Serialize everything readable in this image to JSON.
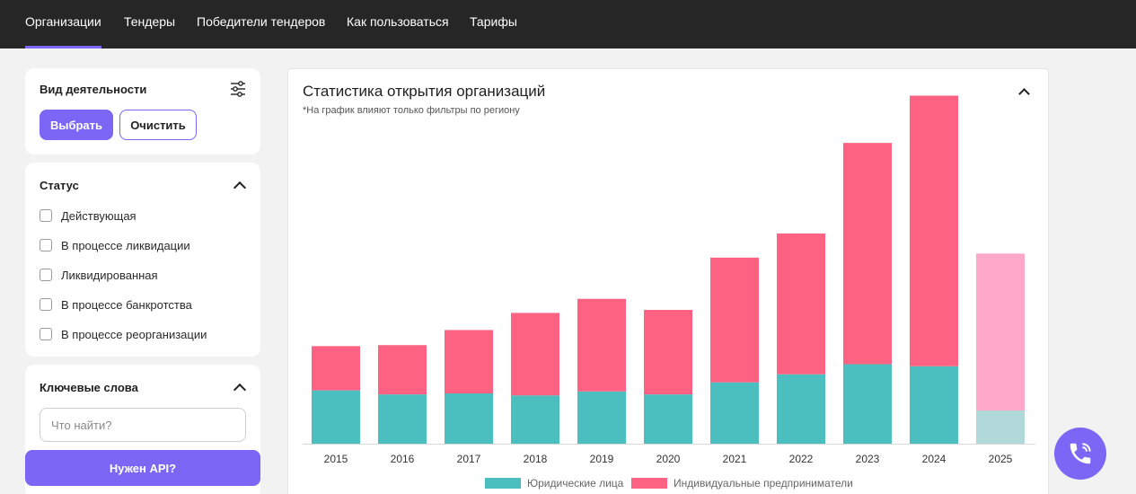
{
  "nav": {
    "items": [
      {
        "label": "Организации",
        "active": true
      },
      {
        "label": "Тендеры",
        "active": false
      },
      {
        "label": "Победители тендеров",
        "active": false
      },
      {
        "label": "Как пользоваться",
        "active": false
      },
      {
        "label": "Тарифы",
        "active": false
      }
    ]
  },
  "activity": {
    "title": "Вид деятельности",
    "select_label": "Выбрать",
    "clear_label": "Очистить"
  },
  "status": {
    "title": "Статус",
    "options": [
      "Действующая",
      "В процессе ликвидации",
      "Ликвидированная",
      "В процессе банкротства",
      "В процессе реорганизации"
    ]
  },
  "keywords": {
    "title": "Ключевые слова",
    "placeholder": "Что найти?"
  },
  "api_button": "Нужен API?",
  "chart_panel": {
    "title": "Статистика открытия организаций",
    "note": "*На график влияют только фильтры по региону"
  },
  "colors": {
    "accent": "#7b66f6",
    "legal": "#4bbfbf",
    "individual": "#fe6282",
    "legal_partial": "#b2d9d9",
    "individual_partial": "#ffa8c8"
  },
  "chart_data": {
    "type": "bar",
    "stacked": true,
    "categories": [
      "2015",
      "2016",
      "2017",
      "2018",
      "2019",
      "2020",
      "2021",
      "2022",
      "2023",
      "2024",
      "2025"
    ],
    "series": [
      {
        "name": "Юридические лица",
        "values": [
          53,
          49,
          50,
          48,
          52,
          49,
          61,
          69,
          79,
          77,
          33
        ]
      },
      {
        "name": "Индивидуальные предприниматели",
        "values": [
          44,
          49,
          63,
          82,
          92,
          84,
          124,
          140,
          220,
          269,
          156
        ]
      }
    ],
    "partial_categories": [
      "2025"
    ],
    "ylim": [
      0,
      350
    ],
    "grid": false,
    "legend": "bottom"
  }
}
